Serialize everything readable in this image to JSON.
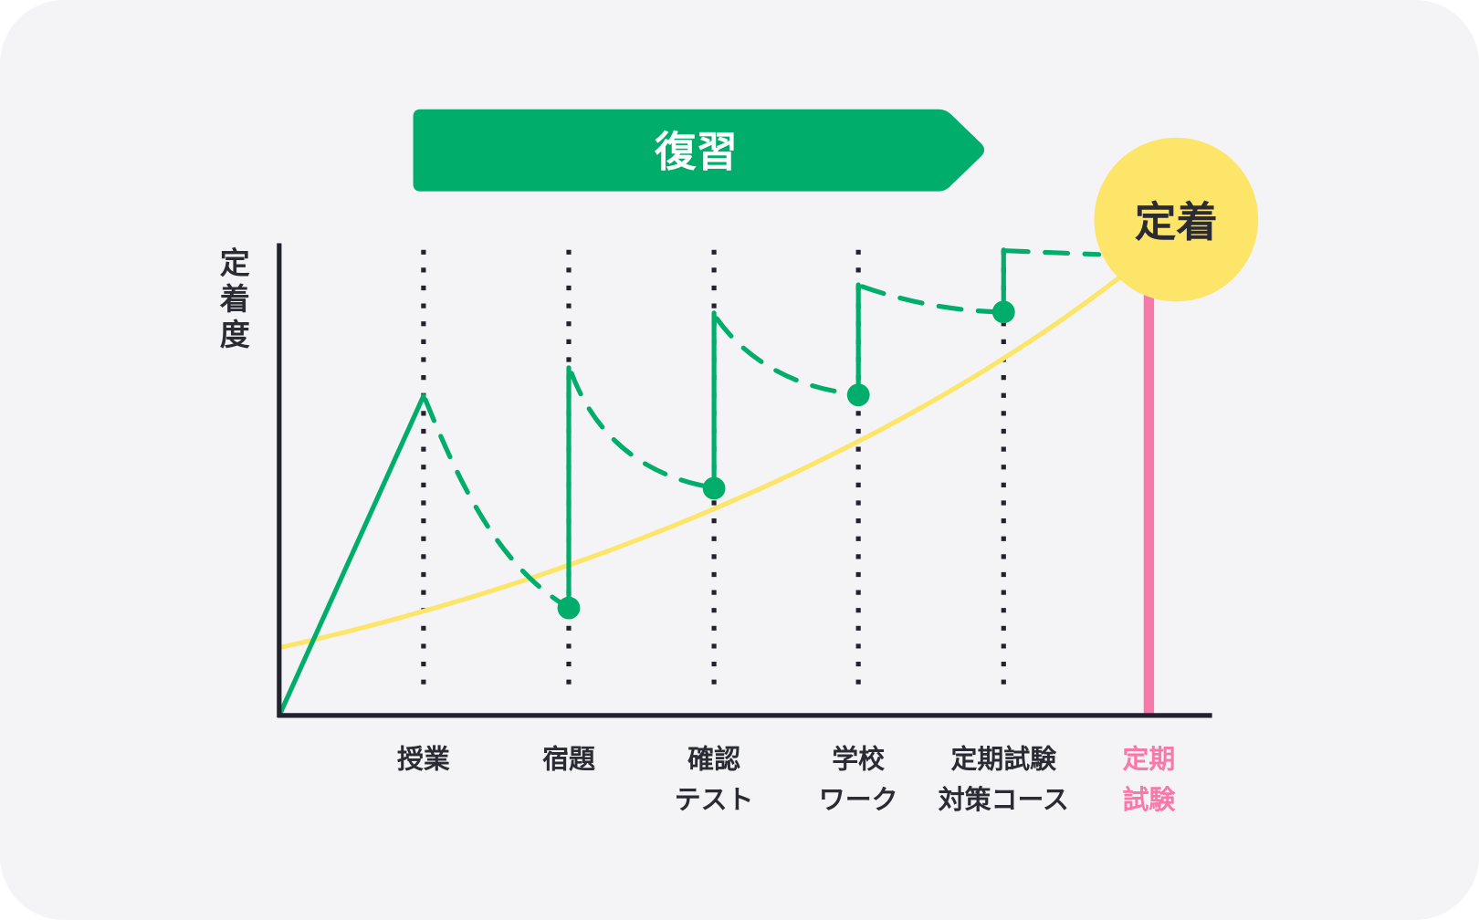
{
  "banner": {
    "label": "復習"
  },
  "goal": {
    "label": "定着"
  },
  "y_axis": {
    "label_chars": [
      "定",
      "着",
      "度"
    ]
  },
  "x_labels": [
    {
      "line1": "授業",
      "line2": ""
    },
    {
      "line1": "宿題",
      "line2": ""
    },
    {
      "line1": "確認",
      "line2": "テスト"
    },
    {
      "line1": "学校",
      "line2": "ワーク"
    },
    {
      "line1": "定期試験",
      "line2": "対策コース"
    },
    {
      "line1": "定期",
      "line2": "試験"
    }
  ],
  "colors": {
    "green": "#00ad6b",
    "yellow": "#fde56a",
    "pink": "#f878aa",
    "axis": "#22222e",
    "background": "#f4f4f7"
  }
}
